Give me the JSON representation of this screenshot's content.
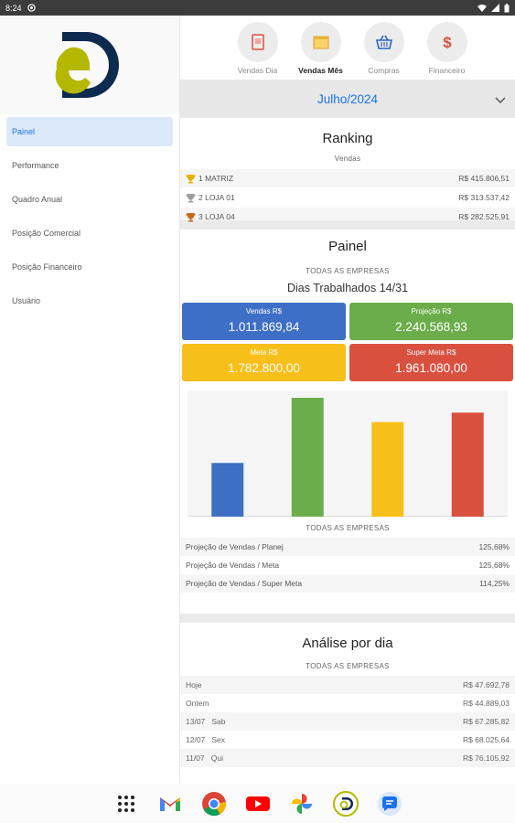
{
  "status_bar": {
    "time": "8:24"
  },
  "sidebar": {
    "items": [
      {
        "label": "Painel",
        "active": true
      },
      {
        "label": "Performance"
      },
      {
        "label": "Quadro Anual"
      },
      {
        "label": "Posição Comercial"
      },
      {
        "label": "Posição Financeiro"
      },
      {
        "label": "Usuário"
      }
    ]
  },
  "top_tabs": [
    {
      "label": "Vendas Dia",
      "icon": "vendas-dia-icon"
    },
    {
      "label": "Vendas Mês",
      "icon": "calendar-icon",
      "active": true
    },
    {
      "label": "Compras",
      "icon": "basket-icon"
    },
    {
      "label": "Financeiro",
      "icon": "dollar-icon"
    }
  ],
  "month": "Julho/2024",
  "ranking": {
    "title": "Ranking",
    "subtitle": "Vendas",
    "rows": [
      {
        "label": "1 MATRIZ",
        "value": "R$ 415.806,51",
        "trophy_color": "#e6b200"
      },
      {
        "label": "2 LOJA 01",
        "value": "R$ 313.537,42",
        "trophy_color": "#9e9e9e"
      },
      {
        "label": "3 LOJA 04",
        "value": "R$ 282.525,91",
        "trophy_color": "#c56a1b"
      }
    ]
  },
  "painel": {
    "title": "Painel",
    "subtitle": "TODAS AS EMPRESAS",
    "dias": "Dias Trabalhados 14/31",
    "tiles": [
      {
        "label": "Vendas R$",
        "value": "1.011.869,84",
        "color": "#3e6fc7"
      },
      {
        "label": "Projeção R$",
        "value": "2.240.568,93",
        "color": "#6bad4a"
      },
      {
        "label": "Meta R$",
        "value": "1.782.800,00",
        "color": "#f7bf19"
      },
      {
        "label": "Super Meta R$",
        "value": "1.961.080,00",
        "color": "#d9503f"
      }
    ],
    "chart_caption": "TODAS AS EMPRESAS",
    "metrics": [
      {
        "label": "Projeção de Vendas / Planej",
        "value": "125,68%"
      },
      {
        "label": "Projeção de Vendas / Meta",
        "value": "125,68%"
      },
      {
        "label": "Projeção de Vendas / Super Meta",
        "value": "114,25%"
      }
    ]
  },
  "chart_data": {
    "type": "bar",
    "categories": [
      "Vendas R$",
      "Projeção R$",
      "Meta R$",
      "Super Meta R$"
    ],
    "values": [
      1011869.84,
      2240568.93,
      1782800.0,
      1961080.0
    ],
    "colors": [
      "#3e6fc7",
      "#6bad4a",
      "#f7bf19",
      "#d9503f"
    ],
    "title": "",
    "xlabel": "",
    "ylabel": "",
    "ylim": [
      0,
      2240568.93
    ],
    "grid": false
  },
  "analise": {
    "title": "Análise por dia",
    "subtitle": "TODAS AS EMPRESAS",
    "rows": [
      {
        "label": "Hoje",
        "value": "R$ 47.692,78"
      },
      {
        "label": "Ontem",
        "value": "R$ 44.889,03"
      },
      {
        "label": "13/07   Sab",
        "value": "R$ 67.285,82"
      },
      {
        "label": "12/07   Sex",
        "value": "R$ 68.025,64"
      },
      {
        "label": "11/07   Qui",
        "value": "R$ 76.105,92"
      }
    ]
  },
  "dock": [
    {
      "icon": "app-grid-icon"
    },
    {
      "icon": "gmail-icon"
    },
    {
      "icon": "chrome-icon"
    },
    {
      "icon": "youtube-icon"
    },
    {
      "icon": "photos-icon"
    },
    {
      "icon": "ed-app-icon"
    },
    {
      "icon": "messages-icon"
    }
  ]
}
